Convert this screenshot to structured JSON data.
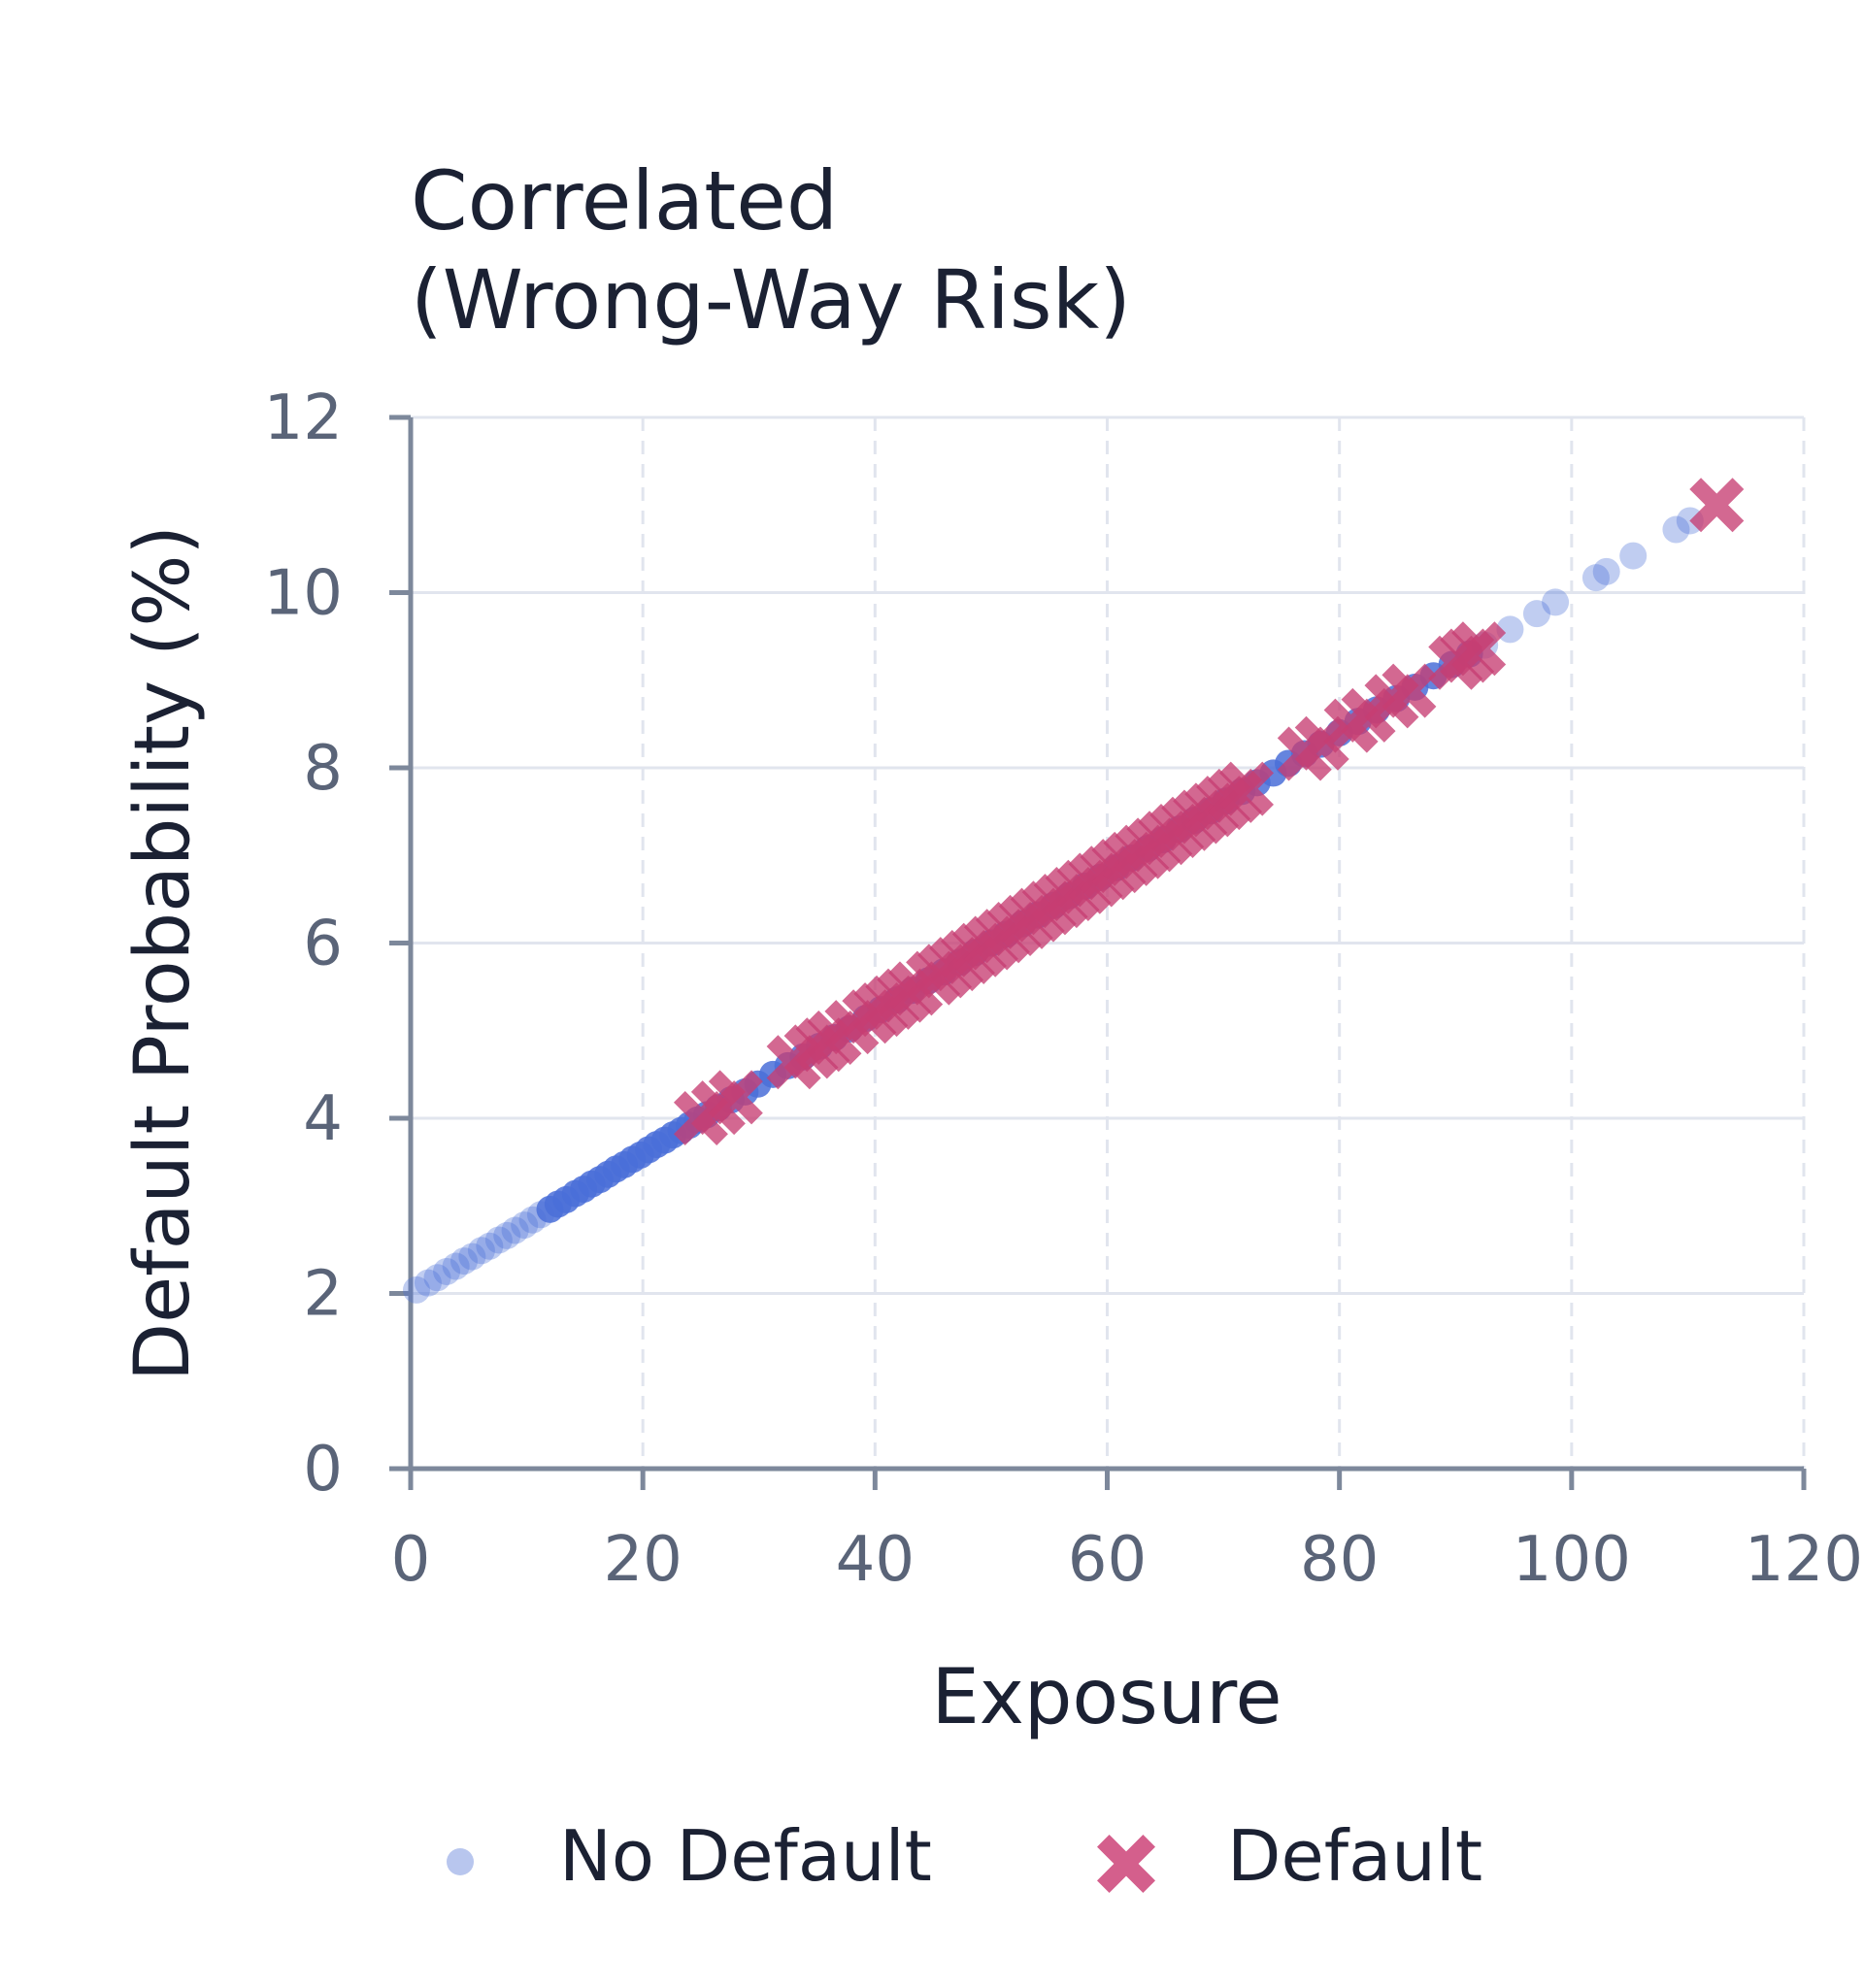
{
  "chart_data": {
    "type": "scatter",
    "title_lines": [
      "Correlated",
      "(Wrong-Way Risk)"
    ],
    "xlabel": "Exposure",
    "ylabel": "Default Probability (%)",
    "xlim": [
      0,
      120
    ],
    "ylim": [
      0,
      12
    ],
    "xticks": [
      0,
      20,
      40,
      60,
      80,
      100,
      120
    ],
    "yticks": [
      0,
      2,
      4,
      6,
      8,
      10,
      12
    ],
    "grid": true,
    "legend_position": "bottom",
    "relationship": "y = 2 + 0.08 x",
    "series": [
      {
        "name": "No Default",
        "marker": "circle",
        "color": "#4a6fd8",
        "x": [
          0.5,
          1.5,
          2.3,
          3.1,
          3.9,
          4.6,
          5.3,
          6.1,
          6.8,
          7.6,
          8.3,
          9.0,
          9.8,
          10.5,
          11.2,
          12.0,
          12.7,
          13.4,
          14.2,
          14.9,
          15.6,
          16.3,
          17.0,
          17.7,
          18.4,
          19.1,
          19.8,
          20.5,
          21.2,
          21.9,
          22.6,
          23.3,
          24.0,
          24.7,
          25.5,
          26.5,
          27.6,
          28.8,
          29.9,
          31.2,
          32.5,
          33.8,
          35.2,
          36.5,
          37.8,
          39.2,
          40.5,
          41.9,
          43.2,
          44.6,
          45.9,
          47.3,
          48.6,
          50.0,
          51.3,
          52.7,
          54.0,
          55.4,
          56.7,
          58.1,
          59.4,
          60.8,
          62.1,
          63.5,
          64.8,
          66.2,
          67.5,
          68.9,
          70.2,
          71.6,
          72.9,
          74.3,
          75.6,
          77.0,
          78.4,
          80.0,
          81.6,
          83.2,
          84.9,
          86.5,
          88.1,
          89.7,
          91.2,
          92.5,
          94.7,
          97.0,
          98.6,
          102.1,
          103.0,
          105.3,
          109.0,
          110.2
        ],
        "y": [
          2.04,
          2.12,
          2.18,
          2.25,
          2.31,
          2.37,
          2.42,
          2.49,
          2.54,
          2.61,
          2.66,
          2.72,
          2.78,
          2.84,
          2.9,
          2.96,
          3.02,
          3.07,
          3.14,
          3.19,
          3.25,
          3.3,
          3.36,
          3.42,
          3.47,
          3.53,
          3.58,
          3.64,
          3.7,
          3.75,
          3.81,
          3.86,
          3.92,
          3.98,
          4.04,
          4.12,
          4.21,
          4.3,
          4.39,
          4.5,
          4.6,
          4.7,
          4.82,
          4.92,
          5.02,
          5.14,
          5.24,
          5.35,
          5.46,
          5.57,
          5.67,
          5.78,
          5.89,
          6.0,
          6.1,
          6.22,
          6.32,
          6.43,
          6.54,
          6.65,
          6.75,
          6.86,
          6.97,
          7.08,
          7.18,
          7.3,
          7.4,
          7.51,
          7.62,
          7.73,
          7.83,
          7.94,
          8.05,
          8.16,
          8.27,
          8.4,
          8.53,
          8.66,
          8.79,
          8.92,
          9.05,
          9.18,
          9.3,
          9.4,
          9.58,
          9.76,
          9.89,
          10.17,
          10.24,
          10.42,
          10.72,
          10.82
        ]
      },
      {
        "name": "Default",
        "marker": "x",
        "color": "#c73e72",
        "x": [
          25.0,
          26.5,
          28.0,
          33.0,
          34.5,
          35.5,
          36.5,
          38.0,
          39.5,
          40.5,
          41.5,
          42.5,
          43.5,
          45.0,
          46.0,
          47.0,
          48.0,
          49.0,
          50.0,
          51.0,
          52.0,
          53.0,
          54.0,
          55.0,
          56.0,
          57.0,
          58.0,
          59.0,
          60.0,
          61.0,
          62.0,
          63.0,
          64.0,
          65.0,
          66.0,
          67.0,
          68.0,
          69.0,
          70.0,
          71.0,
          72.0,
          77.0,
          78.5,
          81.0,
          82.5,
          84.5,
          86.0,
          90.0,
          91.0,
          92.0,
          112.5
        ],
        "y": [
          4.0,
          4.12,
          4.24,
          4.64,
          4.76,
          4.84,
          4.92,
          5.04,
          5.16,
          5.24,
          5.32,
          5.4,
          5.48,
          5.6,
          5.68,
          5.76,
          5.84,
          5.92,
          6.0,
          6.08,
          6.16,
          6.24,
          6.32,
          6.4,
          6.48,
          6.56,
          6.64,
          6.72,
          6.8,
          6.88,
          6.96,
          7.04,
          7.12,
          7.2,
          7.28,
          7.36,
          7.44,
          7.52,
          7.6,
          7.68,
          7.76,
          8.16,
          8.28,
          8.48,
          8.6,
          8.76,
          8.88,
          9.2,
          9.28,
          9.36,
          11.0
        ]
      }
    ]
  },
  "legend": {
    "items": [
      {
        "label": "No Default",
        "marker_color": "#b8c6ee"
      },
      {
        "label": "Default",
        "marker_color": "#d45f8c"
      }
    ]
  }
}
